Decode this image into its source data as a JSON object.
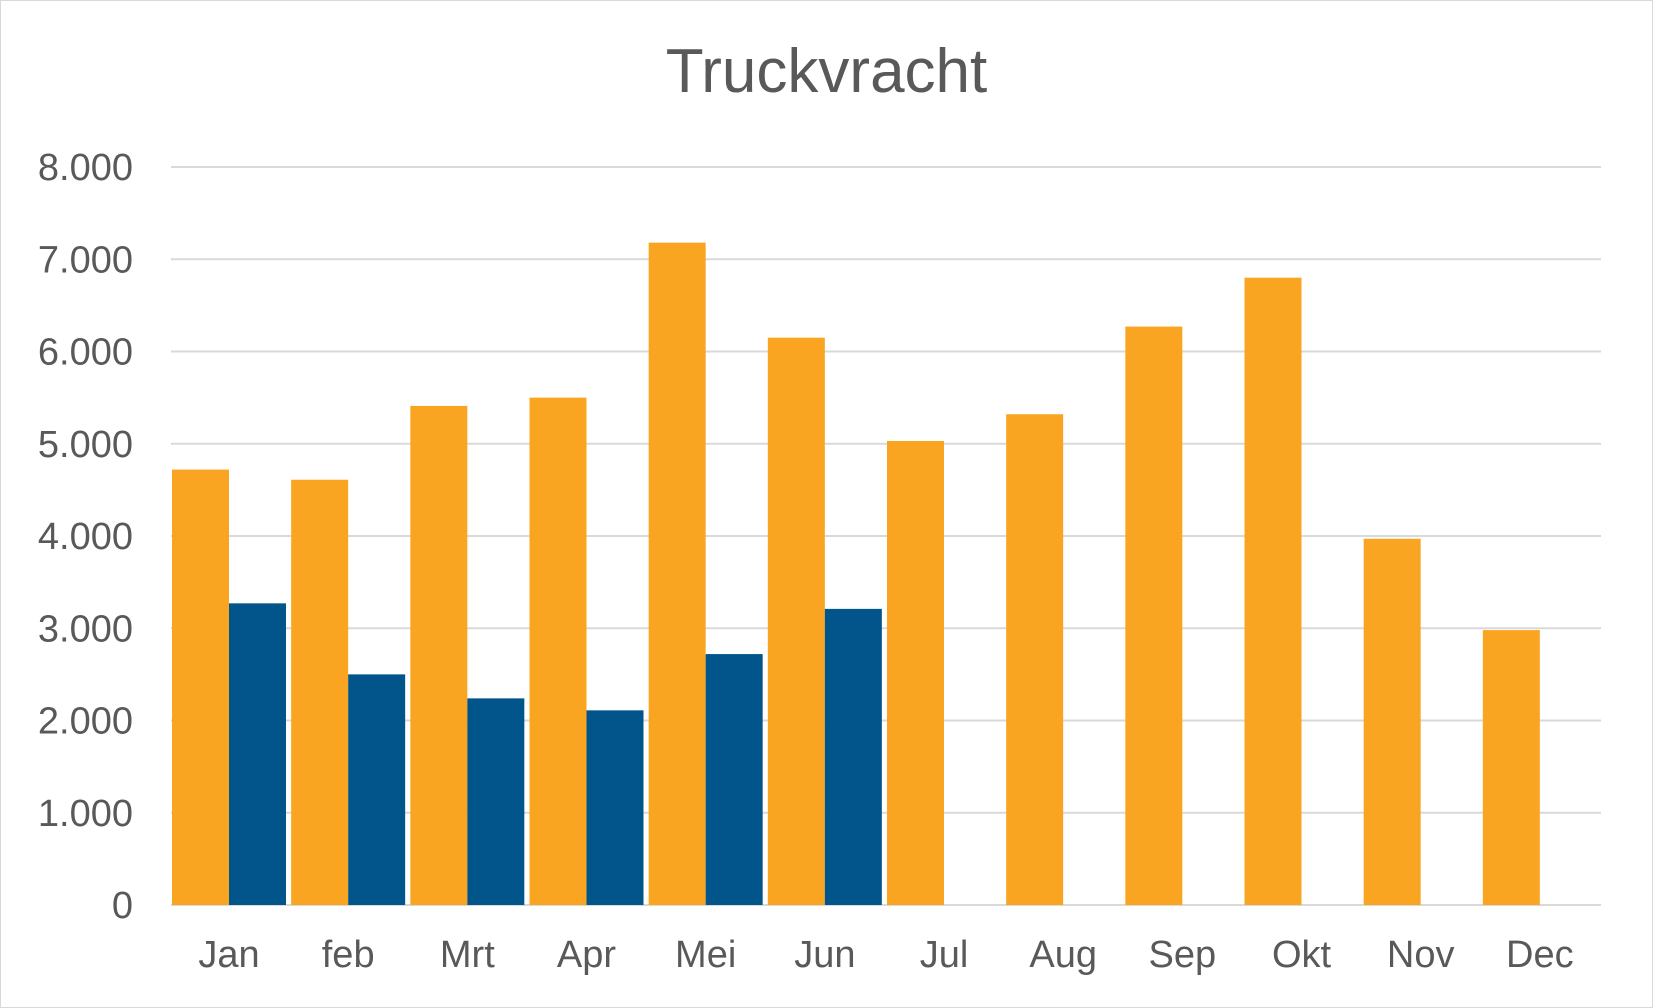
{
  "chart_data": {
    "type": "bar",
    "title": "Truckvracht",
    "categories": [
      "Jan",
      "feb",
      "Mrt",
      "Apr",
      "Mei",
      "Jun",
      "Jul",
      "Aug",
      "Sep",
      "Okt",
      "Nov",
      "Dec"
    ],
    "series": [
      {
        "color": "#F9A521",
        "values": [
          4720,
          4610,
          5410,
          5500,
          7180,
          6150,
          5030,
          5320,
          6270,
          6800,
          3970,
          2980
        ]
      },
      {
        "color": "#01558B",
        "values": [
          3270,
          2500,
          2240,
          2110,
          2720,
          3210,
          null,
          null,
          null,
          null,
          null,
          null
        ]
      }
    ],
    "y_tick_labels": [
      "0",
      "1.000",
      "2.000",
      "3.000",
      "4.000",
      "5.000",
      "6.000",
      "7.000",
      "8.000"
    ],
    "ylim": [
      0,
      8000
    ],
    "y_tick_step": 1000,
    "grid": true,
    "gridline_color": "#d9d9d9",
    "xlabel": "",
    "ylabel": ""
  }
}
